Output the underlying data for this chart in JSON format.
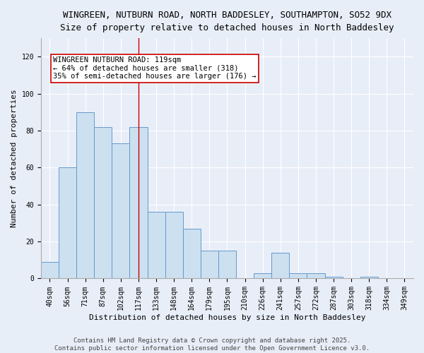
{
  "title": "WINGREEN, NUTBURN ROAD, NORTH BADDESLEY, SOUTHAMPTON, SO52 9DX",
  "subtitle": "Size of property relative to detached houses in North Baddesley",
  "xlabel": "Distribution of detached houses by size in North Baddesley",
  "ylabel": "Number of detached properties",
  "categories": [
    "40sqm",
    "56sqm",
    "71sqm",
    "87sqm",
    "102sqm",
    "117sqm",
    "133sqm",
    "148sqm",
    "164sqm",
    "179sqm",
    "195sqm",
    "210sqm",
    "226sqm",
    "241sqm",
    "257sqm",
    "272sqm",
    "287sqm",
    "303sqm",
    "318sqm",
    "334sqm",
    "349sqm"
  ],
  "values": [
    9,
    60,
    90,
    82,
    73,
    82,
    36,
    36,
    27,
    15,
    15,
    0,
    3,
    14,
    3,
    3,
    1,
    0,
    1,
    0,
    0
  ],
  "bar_color": "#cce0f0",
  "bar_edge_color": "#6699cc",
  "vline_x_index": 5,
  "vline_color": "#cc0000",
  "annotation_title": "WINGREEN NUTBURN ROAD: 119sqm",
  "annotation_line2": "← 64% of detached houses are smaller (318)",
  "annotation_line3": "35% of semi-detached houses are larger (176) →",
  "annotation_box_color": "#ffffff",
  "annotation_box_edge": "#cc0000",
  "ylim": [
    0,
    130
  ],
  "yticks": [
    0,
    20,
    40,
    60,
    80,
    100,
    120
  ],
  "footer": "Contains HM Land Registry data © Crown copyright and database right 2025.\nContains public sector information licensed under the Open Government Licence v3.0.",
  "bg_color": "#e8eef8",
  "plot_bg_color": "#e8eef8",
  "title_fontsize": 9,
  "subtitle_fontsize": 9,
  "axis_label_fontsize": 8,
  "tick_fontsize": 7,
  "annotation_fontsize": 7.5,
  "footer_fontsize": 6.5
}
